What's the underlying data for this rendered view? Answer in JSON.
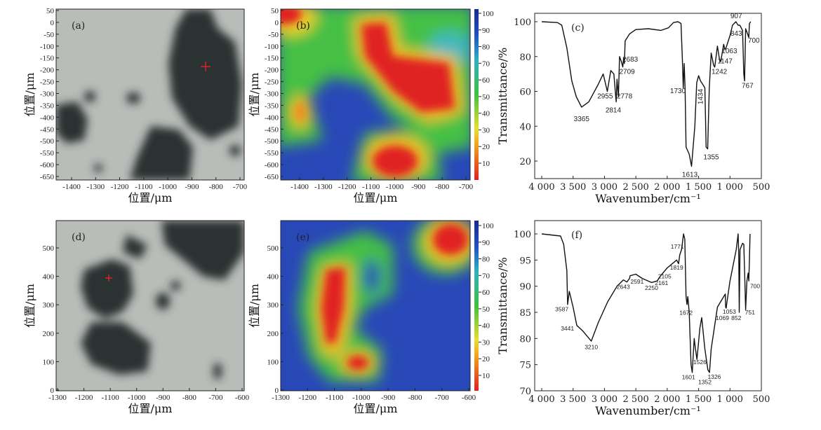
{
  "panels": {
    "a": {
      "label": "(a)",
      "xlabel": "位置/μm",
      "ylabel": "位置/μm",
      "xticks": [
        "-1400",
        "-1300",
        "-1200",
        "-1100",
        "-1000",
        "-900",
        "-800",
        "-700"
      ],
      "yticks": [
        "50",
        "0",
        "-50",
        "-100",
        "-150",
        "-200",
        "-250",
        "-300",
        "-350",
        "-400",
        "-450",
        "-500",
        "-550",
        "-600",
        "-650"
      ]
    },
    "b": {
      "label": "(b)",
      "xlabel": "位置/μm",
      "ylabel": "位置/μm",
      "xticks": [
        "-1400",
        "-1300",
        "-1200",
        "-1100",
        "-1000",
        "-900",
        "-800",
        "-700"
      ],
      "yticks": [
        "50",
        "0",
        "-50",
        "-100",
        "-150",
        "-200",
        "-250",
        "-300",
        "-350",
        "-400",
        "-450",
        "-500",
        "-550",
        "-600",
        "-650"
      ],
      "colorbar": [
        "100",
        "90",
        "80",
        "70",
        "60",
        "50",
        "40",
        "30",
        "20",
        "10"
      ]
    },
    "d": {
      "label": "(d)",
      "xlabel": "位置/μm",
      "ylabel": "位置/μm",
      "xticks": [
        "-1300",
        "-1200",
        "-1100",
        "-1000",
        "-900",
        "-800",
        "-700",
        "-600"
      ],
      "yticks": [
        "500",
        "400",
        "300",
        "200",
        "100",
        "0"
      ]
    },
    "e": {
      "label": "(e)",
      "xlabel": "位置/μm",
      "ylabel": "位置/μm",
      "xticks": [
        "-1300",
        "-1200",
        "-1100",
        "-1000",
        "-900",
        "-800",
        "-700",
        "-600"
      ],
      "yticks": [
        "500",
        "400",
        "300",
        "200",
        "100",
        "0"
      ],
      "colorbar": [
        "100",
        "90",
        "80",
        "70",
        "60",
        "50",
        "40",
        "30",
        "20",
        "10"
      ]
    }
  },
  "colors": {
    "line": "#111111",
    "heat_low": "#e02020",
    "heat_mid": "#40c040",
    "heat_high": "#2040b0",
    "photo_bg": "#b9bdb9",
    "photo_dark": "#2b3032"
  },
  "chart_data": [
    {
      "type": "line",
      "panel": "(c)",
      "xlabel": "Wavenumber/cm⁻¹",
      "ylabel": "Transmittance/%",
      "xlim": [
        4000,
        500
      ],
      "ylim": [
        10,
        104
      ],
      "xticks": [
        {
          "v": 4000,
          "t": "4 000"
        },
        {
          "v": 3500,
          "t": "3 500"
        },
        {
          "v": 3000,
          "t": "3 000"
        },
        {
          "v": 2500,
          "t": "2 500"
        },
        {
          "v": 2000,
          "t": "2 000"
        },
        {
          "v": 1500,
          "t": "1 500"
        },
        {
          "v": 1000,
          "t": "1 000"
        },
        {
          "v": 500,
          "t": "500"
        }
      ],
      "yticks": [
        {
          "v": 100,
          "t": "100"
        },
        {
          "v": 80,
          "t": "80"
        },
        {
          "v": 60,
          "t": "60"
        },
        {
          "v": 40,
          "t": "40"
        },
        {
          "v": 20,
          "t": "20"
        }
      ],
      "points": [
        [
          4000,
          100
        ],
        [
          3750,
          99.5
        ],
        [
          3680,
          98
        ],
        [
          3600,
          85
        ],
        [
          3520,
          66
        ],
        [
          3450,
          57
        ],
        [
          3365,
          51
        ],
        [
          3250,
          54
        ],
        [
          3100,
          64
        ],
        [
          3020,
          70
        ],
        [
          2955,
          60
        ],
        [
          2900,
          72
        ],
        [
          2850,
          70
        ],
        [
          2814,
          54
        ],
        [
          2800,
          67
        ],
        [
          2778,
          57
        ],
        [
          2760,
          80
        ],
        [
          2730,
          77
        ],
        [
          2709,
          74
        ],
        [
          2695,
          79
        ],
        [
          2683,
          76
        ],
        [
          2670,
          89
        ],
        [
          2600,
          93
        ],
        [
          2500,
          95.5
        ],
        [
          2300,
          96
        ],
        [
          2100,
          95
        ],
        [
          1980,
          96.5
        ],
        [
          1900,
          99.5
        ],
        [
          1830,
          100
        ],
        [
          1780,
          99
        ],
        [
          1760,
          80
        ],
        [
          1745,
          62
        ],
        [
          1730,
          76
        ],
        [
          1715,
          62
        ],
        [
          1700,
          28
        ],
        [
          1650,
          24
        ],
        [
          1613,
          17
        ],
        [
          1560,
          40
        ],
        [
          1530,
          65
        ],
        [
          1500,
          69
        ],
        [
          1470,
          66
        ],
        [
          1434,
          64
        ],
        [
          1400,
          62
        ],
        [
          1380,
          28
        ],
        [
          1355,
          27
        ],
        [
          1330,
          62
        ],
        [
          1300,
          82
        ],
        [
          1260,
          75
        ],
        [
          1242,
          74
        ],
        [
          1200,
          86
        ],
        [
          1170,
          79
        ],
        [
          1147,
          77
        ],
        [
          1100,
          87
        ],
        [
          1080,
          84
        ],
        [
          1063,
          85
        ],
        [
          1000,
          92
        ],
        [
          960,
          98
        ],
        [
          907,
          100
        ],
        [
          870,
          98
        ],
        [
          843,
          98
        ],
        [
          800,
          95
        ],
        [
          780,
          70
        ],
        [
          767,
          66
        ],
        [
          750,
          96
        ],
        [
          720,
          93
        ],
        [
          700,
          91
        ],
        [
          690,
          99
        ],
        [
          670,
          100
        ]
      ],
      "annotations": [
        {
          "t": "3365",
          "x": 3365,
          "y": 43
        },
        {
          "t": "2955",
          "x": 2990,
          "y": 56
        },
        {
          "t": "2814",
          "x": 2860,
          "y": 48
        },
        {
          "t": "2778",
          "x": 2680,
          "y": 56
        },
        {
          "t": "2709",
          "x": 2640,
          "y": 70
        },
        {
          "t": "2683",
          "x": 2590,
          "y": 77
        },
        {
          "t": "1730",
          "x": 1830,
          "y": 59
        },
        {
          "t": "1434",
          "x": 1434,
          "y": 57,
          "rot": true
        },
        {
          "t": "1613",
          "x": 1640,
          "y": 11
        },
        {
          "t": "1355",
          "x": 1300,
          "y": 21
        },
        {
          "t": "1242",
          "x": 1170,
          "y": 70
        },
        {
          "t": "1147",
          "x": 1080,
          "y": 76
        },
        {
          "t": "1063",
          "x": 1010,
          "y": 82
        },
        {
          "t": "843",
          "x": 900,
          "y": 92
        },
        {
          "t": "907",
          "x": 900,
          "y": 102
        },
        {
          "t": "700",
          "x": 620,
          "y": 88
        },
        {
          "t": "767",
          "x": 720,
          "y": 62
        }
      ]
    },
    {
      "type": "line",
      "panel": "(f)",
      "xlabel": "Wavenumber/cm⁻¹",
      "ylabel": "Transmittance/%",
      "xlim": [
        4000,
        500
      ],
      "ylim": [
        70,
        102.5
      ],
      "xticks": [
        {
          "v": 4000,
          "t": "4 000"
        },
        {
          "v": 3500,
          "t": "3 500"
        },
        {
          "v": 3000,
          "t": "3 000"
        },
        {
          "v": 2500,
          "t": "2 500"
        },
        {
          "v": 2000,
          "t": "2 000"
        },
        {
          "v": 1500,
          "t": "1 500"
        },
        {
          "v": 1000,
          "t": "1 000"
        },
        {
          "v": 500,
          "t": "500"
        }
      ],
      "yticks": [
        {
          "v": 100,
          "t": "100"
        },
        {
          "v": 95,
          "t": "95"
        },
        {
          "v": 90,
          "t": "90"
        },
        {
          "v": 85,
          "t": "85"
        },
        {
          "v": 80,
          "t": "80"
        },
        {
          "v": 75,
          "t": "75"
        },
        {
          "v": 70,
          "t": "70"
        }
      ],
      "points": [
        [
          4000,
          100
        ],
        [
          3700,
          99.6
        ],
        [
          3650,
          98
        ],
        [
          3600,
          93
        ],
        [
          3587,
          86.5
        ],
        [
          3560,
          89
        ],
        [
          3500,
          86
        ],
        [
          3441,
          82.5
        ],
        [
          3350,
          81.5
        ],
        [
          3210,
          79.5
        ],
        [
          3100,
          83
        ],
        [
          2950,
          87
        ],
        [
          2800,
          90
        ],
        [
          2700,
          91.2
        ],
        [
          2643,
          90.8
        ],
        [
          2600,
          91.5
        ],
        [
          2591,
          92
        ],
        [
          2500,
          92.3
        ],
        [
          2400,
          91.5
        ],
        [
          2250,
          90.7
        ],
        [
          2161,
          91
        ],
        [
          2105,
          92
        ],
        [
          2000,
          93.5
        ],
        [
          1850,
          95
        ],
        [
          1819,
          94.3
        ],
        [
          1800,
          96
        ],
        [
          1771,
          97
        ],
        [
          1740,
          100
        ],
        [
          1720,
          99
        ],
        [
          1700,
          88
        ],
        [
          1685,
          86.5
        ],
        [
          1672,
          88
        ],
        [
          1650,
          85
        ],
        [
          1620,
          75
        ],
        [
          1601,
          73.5
        ],
        [
          1570,
          80
        ],
        [
          1550,
          78
        ],
        [
          1526,
          76
        ],
        [
          1480,
          82
        ],
        [
          1450,
          84
        ],
        [
          1400,
          78
        ],
        [
          1352,
          74
        ],
        [
          1326,
          73.5
        ],
        [
          1300,
          78
        ],
        [
          1200,
          86
        ],
        [
          1100,
          88
        ],
        [
          1075,
          88.5
        ],
        [
          1069,
          86
        ],
        [
          1060,
          85.8
        ],
        [
          1053,
          86.5
        ],
        [
          1000,
          91
        ],
        [
          900,
          97
        ],
        [
          870,
          100
        ],
        [
          860,
          96
        ],
        [
          852,
          85
        ],
        [
          840,
          97
        ],
        [
          800,
          98.2
        ],
        [
          780,
          98
        ],
        [
          760,
          90
        ],
        [
          751,
          85.5
        ],
        [
          730,
          91
        ],
        [
          710,
          92.5
        ],
        [
          700,
          91
        ],
        [
          690,
          95
        ],
        [
          680,
          100
        ]
      ],
      "annotations": [
        {
          "t": "3587",
          "x": 3680,
          "y": 85.2
        },
        {
          "t": "3441",
          "x": 3590,
          "y": 81.5
        },
        {
          "t": "3210",
          "x": 3210,
          "y": 78
        },
        {
          "t": "2643",
          "x": 2700,
          "y": 89.5
        },
        {
          "t": "2591",
          "x": 2480,
          "y": 90.5
        },
        {
          "t": "2250",
          "x": 2250,
          "y": 89.3
        },
        {
          "t": "2161",
          "x": 2090,
          "y": 90.2
        },
        {
          "t": "2105",
          "x": 2040,
          "y": 91.5
        },
        {
          "t": "1819",
          "x": 1850,
          "y": 93.2
        },
        {
          "t": "1771",
          "x": 1840,
          "y": 97.2
        },
        {
          "t": "1672",
          "x": 1700,
          "y": 84.5
        },
        {
          "t": "1601",
          "x": 1660,
          "y": 72.2
        },
        {
          "t": "1526",
          "x": 1480,
          "y": 75.1
        },
        {
          "t": "1352",
          "x": 1400,
          "y": 71.3
        },
        {
          "t": "1326",
          "x": 1250,
          "y": 72.3
        },
        {
          "t": "1069",
          "x": 1120,
          "y": 83.5
        },
        {
          "t": "1053",
          "x": 1010,
          "y": 84.7
        },
        {
          "t": "852",
          "x": 900,
          "y": 83.5
        },
        {
          "t": "751",
          "x": 680,
          "y": 84.6
        },
        {
          "t": "700",
          "x": 600,
          "y": 89.6
        }
      ]
    }
  ]
}
